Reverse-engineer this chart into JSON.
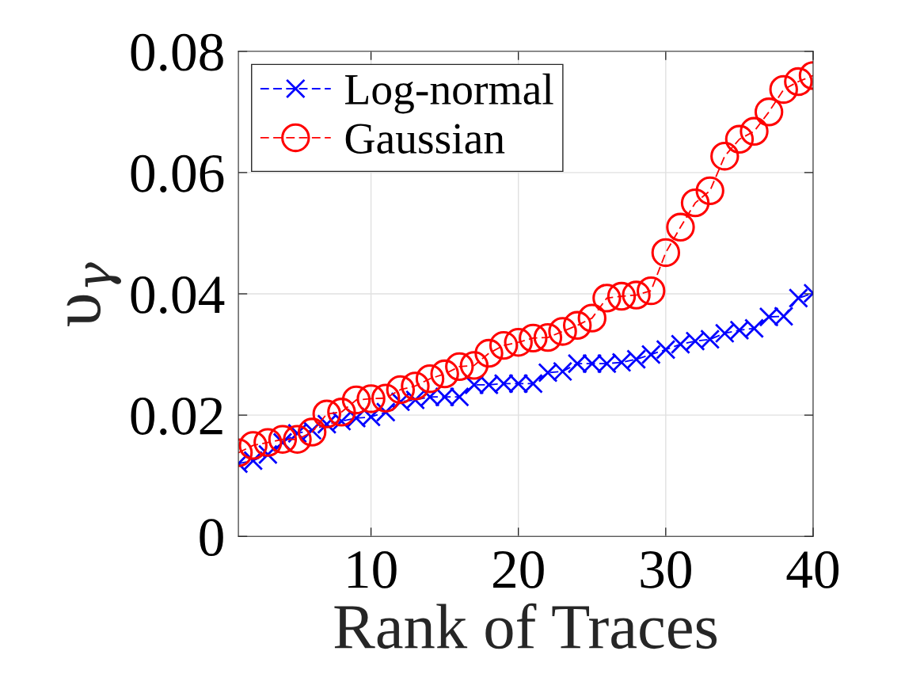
{
  "chart_data": {
    "type": "line",
    "xlabel": "Rank of Traces",
    "ylabel": "υ$_{γ}$",
    "x": [
      1,
      2,
      3,
      4,
      5,
      6,
      7,
      8,
      9,
      10,
      11,
      12,
      13,
      14,
      15,
      16,
      17,
      18,
      19,
      20,
      21,
      22,
      23,
      24,
      25,
      26,
      27,
      28,
      29,
      30,
      31,
      32,
      33,
      34,
      35,
      36,
      37,
      38,
      39,
      40
    ],
    "series": [
      {
        "name": "Log-normal",
        "color": "#0000ff",
        "marker": "cross",
        "values": [
          0.012,
          0.0125,
          0.0135,
          0.0155,
          0.017,
          0.0175,
          0.0185,
          0.019,
          0.0195,
          0.0197,
          0.0205,
          0.0222,
          0.0225,
          0.023,
          0.023,
          0.023,
          0.025,
          0.025,
          0.0252,
          0.0252,
          0.0252,
          0.027,
          0.0272,
          0.0285,
          0.0285,
          0.0285,
          0.0287,
          0.0292,
          0.03,
          0.0308,
          0.0317,
          0.0322,
          0.0325,
          0.0335,
          0.034,
          0.0343,
          0.0362,
          0.0363,
          0.0393,
          0.0401
        ]
      },
      {
        "name": "Gaussian",
        "color": "#ff0000",
        "marker": "circle",
        "values": [
          0.0138,
          0.015,
          0.0155,
          0.016,
          0.016,
          0.0172,
          0.0202,
          0.0205,
          0.0225,
          0.0227,
          0.0228,
          0.0242,
          0.0248,
          0.026,
          0.0268,
          0.028,
          0.0282,
          0.0302,
          0.0315,
          0.032,
          0.0327,
          0.0328,
          0.0338,
          0.0348,
          0.036,
          0.0393,
          0.0396,
          0.0398,
          0.0405,
          0.0468,
          0.051,
          0.055,
          0.057,
          0.0627,
          0.0655,
          0.0668,
          0.07,
          0.0737,
          0.075,
          0.076
        ]
      }
    ],
    "xlim": [
      1,
      40
    ],
    "xticks": [
      10,
      20,
      30,
      40
    ],
    "ylim": [
      0,
      0.08
    ],
    "yticks": [
      0,
      0.02,
      0.04,
      0.06,
      0.08
    ],
    "grid": true,
    "legend": "top left",
    "line_style": "dashed"
  }
}
